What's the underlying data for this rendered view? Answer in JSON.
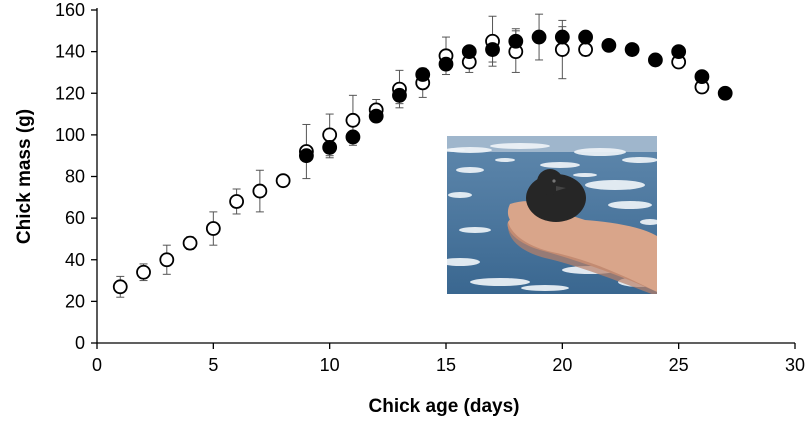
{
  "chart_data": {
    "type": "scatter",
    "title": "",
    "xlabel": "Chick age (days)",
    "ylabel": "Chick mass (g)",
    "xlim": [
      0,
      30
    ],
    "ylim": [
      0,
      160
    ],
    "xticks": [
      0,
      5,
      10,
      15,
      20,
      25,
      30
    ],
    "yticks": [
      0,
      20,
      40,
      60,
      80,
      100,
      120,
      140,
      160
    ],
    "grid": false,
    "legend": "none",
    "series": [
      {
        "marker": "open-circle",
        "color": "#000000",
        "points": [
          {
            "x": 1,
            "y": 27,
            "err": 5
          },
          {
            "x": 2,
            "y": 34,
            "err": 4
          },
          {
            "x": 3,
            "y": 40,
            "err": 7
          },
          {
            "x": 4,
            "y": 48,
            "err": 3
          },
          {
            "x": 5,
            "y": 55,
            "err": 8
          },
          {
            "x": 6,
            "y": 68,
            "err": 6
          },
          {
            "x": 7,
            "y": 73,
            "err": 10
          },
          {
            "x": 8,
            "y": 78,
            "err": 0
          },
          {
            "x": 9,
            "y": 92,
            "err": 13
          },
          {
            "x": 10,
            "y": 100,
            "err": 10
          },
          {
            "x": 11,
            "y": 107,
            "err": 12
          },
          {
            "x": 12,
            "y": 112,
            "err": 5
          },
          {
            "x": 13,
            "y": 122,
            "err": 9
          },
          {
            "x": 14,
            "y": 125,
            "err": 7
          },
          {
            "x": 15,
            "y": 138,
            "err": 9
          },
          {
            "x": 16,
            "y": 135,
            "err": 5
          },
          {
            "x": 17,
            "y": 145,
            "err": 12
          },
          {
            "x": 18,
            "y": 140,
            "err": 10
          },
          {
            "x": 20,
            "y": 141,
            "err": 14
          },
          {
            "x": 21,
            "y": 141,
            "err": 3
          },
          {
            "x": 25,
            "y": 135,
            "err": 0
          },
          {
            "x": 26,
            "y": 123,
            "err": 0
          }
        ]
      },
      {
        "marker": "filled-circle",
        "color": "#000000",
        "points": [
          {
            "x": 9,
            "y": 90,
            "err": 0
          },
          {
            "x": 10,
            "y": 94,
            "err": 5
          },
          {
            "x": 11,
            "y": 99,
            "err": 0
          },
          {
            "x": 12,
            "y": 109,
            "err": 0
          },
          {
            "x": 13,
            "y": 119,
            "err": 4
          },
          {
            "x": 14,
            "y": 129,
            "err": 0
          },
          {
            "x": 15,
            "y": 134,
            "err": 0
          },
          {
            "x": 16,
            "y": 140,
            "err": 0
          },
          {
            "x": 17,
            "y": 141,
            "err": 6
          },
          {
            "x": 18,
            "y": 145,
            "err": 6
          },
          {
            "x": 19,
            "y": 147,
            "err": 11
          },
          {
            "x": 20,
            "y": 147,
            "err": 5
          },
          {
            "x": 21,
            "y": 147,
            "err": 0
          },
          {
            "x": 22,
            "y": 143,
            "err": 0
          },
          {
            "x": 23,
            "y": 141,
            "err": 0
          },
          {
            "x": 24,
            "y": 136,
            "err": 0
          },
          {
            "x": 25,
            "y": 140,
            "err": 0
          },
          {
            "x": 26,
            "y": 128,
            "err": 0
          },
          {
            "x": 27,
            "y": 120,
            "err": 0
          }
        ]
      }
    ]
  },
  "inset_photo": {
    "icon": "chick-in-hand-photo",
    "colors": {
      "sky": "#9fb6cc",
      "sea_top": "#5f88ad",
      "sea_bottom": "#3a6790",
      "ice": "#eef3f7",
      "hand": "#d9a58a",
      "hand_shadow": "#b98068",
      "chick": "#262626"
    }
  }
}
